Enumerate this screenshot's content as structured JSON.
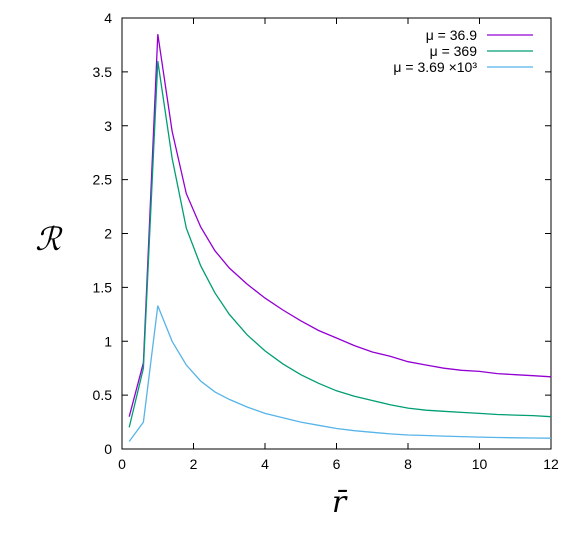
{
  "chart_data": {
    "type": "line",
    "title": "",
    "xlabel": "r̄",
    "ylabel": "ℛ",
    "xlim": [
      0,
      12
    ],
    "ylim": [
      0,
      4
    ],
    "x_ticks": [
      "0",
      "2",
      "4",
      "6",
      "8",
      "10",
      "12"
    ],
    "y_ticks": [
      "0",
      "0.5",
      "1",
      "1.5",
      "2",
      "2.5",
      "3",
      "3.5",
      "4"
    ],
    "x_tick_values": [
      0,
      2,
      4,
      6,
      8,
      10,
      12
    ],
    "y_tick_values": [
      0,
      0.5,
      1,
      1.5,
      2,
      2.5,
      3,
      3.5,
      4
    ],
    "grid": false,
    "legend_position": "top-right",
    "series": [
      {
        "name": "μ = 36.9",
        "color": "#9400d3",
        "x": [
          0.2,
          0.6,
          1.0,
          1.4,
          1.8,
          2.2,
          2.6,
          3.0,
          3.5,
          4.0,
          4.5,
          5.0,
          5.5,
          6.0,
          6.5,
          7.0,
          7.5,
          8.0,
          8.5,
          9.0,
          9.5,
          10.0,
          10.5,
          11.0,
          11.5,
          12.0
        ],
        "values": [
          0.3,
          0.8,
          3.85,
          2.95,
          2.37,
          2.06,
          1.84,
          1.68,
          1.53,
          1.4,
          1.29,
          1.19,
          1.1,
          1.03,
          0.96,
          0.9,
          0.86,
          0.81,
          0.78,
          0.75,
          0.73,
          0.72,
          0.7,
          0.69,
          0.68,
          0.67
        ]
      },
      {
        "name": "μ = 369",
        "color": "#009e73",
        "x": [
          0.2,
          0.6,
          1.0,
          1.4,
          1.8,
          2.2,
          2.6,
          3.0,
          3.5,
          4.0,
          4.5,
          5.0,
          5.5,
          6.0,
          6.5,
          7.0,
          7.5,
          8.0,
          8.5,
          9.0,
          9.5,
          10.0,
          10.5,
          11.0,
          11.5,
          12.0
        ],
        "values": [
          0.2,
          0.75,
          3.6,
          2.7,
          2.05,
          1.7,
          1.45,
          1.25,
          1.06,
          0.91,
          0.79,
          0.69,
          0.61,
          0.54,
          0.49,
          0.45,
          0.41,
          0.38,
          0.36,
          0.35,
          0.34,
          0.33,
          0.32,
          0.315,
          0.31,
          0.3
        ]
      },
      {
        "name": "μ = 3.69 ×10³",
        "color": "#56b4e9",
        "x": [
          0.2,
          0.6,
          1.0,
          1.4,
          1.8,
          2.2,
          2.6,
          3.0,
          3.5,
          4.0,
          4.5,
          5.0,
          5.5,
          6.0,
          6.5,
          7.0,
          7.5,
          8.0,
          8.5,
          9.0,
          9.5,
          10.0,
          10.5,
          11.0,
          11.5,
          12.0
        ],
        "values": [
          0.07,
          0.25,
          1.33,
          1.0,
          0.78,
          0.63,
          0.53,
          0.46,
          0.39,
          0.33,
          0.29,
          0.25,
          0.22,
          0.19,
          0.17,
          0.155,
          0.14,
          0.13,
          0.125,
          0.12,
          0.115,
          0.11,
          0.107,
          0.104,
          0.102,
          0.1
        ]
      }
    ]
  }
}
